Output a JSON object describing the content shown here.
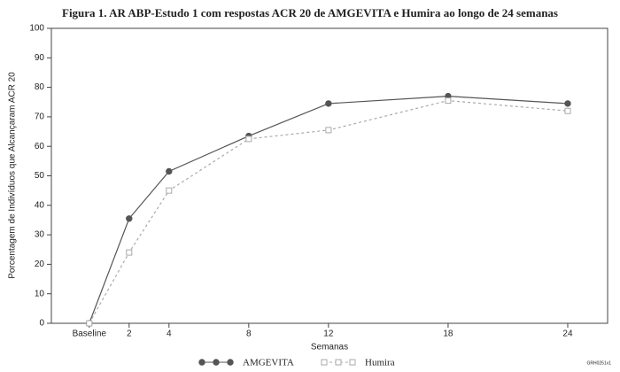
{
  "chart_data": {
    "type": "line",
    "title": "Figura 1. AR ABP-Estudo 1 com respostas ACR 20 de AMGEVITA e Humira ao longo de 24 semanas",
    "x_label": "Semanas",
    "y_label": "Porcentagem de Indivíduos que Alcançaram ACR 20",
    "annotation": "GRH0251v1",
    "x": [
      0,
      2,
      4,
      8,
      12,
      18,
      24
    ],
    "series": [
      {
        "name": "AMGEVITA",
        "color": "#555555",
        "marker": "circle",
        "dashed": false,
        "values": [
          0,
          35.5,
          51.5,
          63.5,
          74.5,
          77,
          74.5
        ]
      },
      {
        "name": "Humira",
        "color": "#aaaaaa",
        "marker": "square",
        "dashed": true,
        "values": [
          0,
          24,
          45,
          62.5,
          65.5,
          75.5,
          72
        ]
      }
    ],
    "xlim": [
      -1.9,
      26
    ],
    "xticks": [
      {
        "value": 0,
        "label": "Baseline"
      },
      2,
      4,
      8,
      12,
      18,
      24
    ],
    "ylim": [
      0,
      100
    ],
    "yticks": [
      0,
      10,
      20,
      30,
      40,
      50,
      60,
      70,
      80,
      90,
      100
    ],
    "grid": false,
    "legend": "bottom"
  }
}
